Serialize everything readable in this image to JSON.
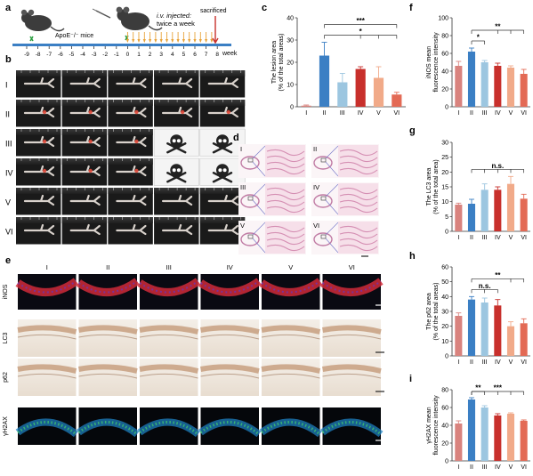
{
  "panels": {
    "a": {
      "letter": "a",
      "mouse_label": "ApoE⁻/⁻ mice",
      "injection_label_1": "i.v. injected:",
      "injection_label_2": "twice a week",
      "sacrificed_label": "sacrificed",
      "week_label": "week",
      "timeline_ticks": [
        "-9",
        "-8",
        "-7",
        "-6",
        "-5",
        "-4",
        "-3",
        "-2",
        "-1",
        "0",
        "1",
        "2",
        "3",
        "4",
        "5",
        "6",
        "7",
        "8"
      ]
    },
    "b": {
      "letter": "b",
      "groups": [
        "I",
        "II",
        "III",
        "IV",
        "V",
        "VI"
      ]
    },
    "d": {
      "letter": "d",
      "groups": [
        "I",
        "II",
        "III",
        "IV",
        "V",
        "VI"
      ]
    },
    "e": {
      "letter": "e",
      "groups": [
        "I",
        "II",
        "III",
        "IV",
        "V",
        "VI"
      ],
      "rows": [
        "iNOS",
        "LC3",
        "p62",
        "γH2AX"
      ]
    }
  },
  "colors": {
    "I": "#d9837e",
    "II": "#3b7fc4",
    "III": "#9cc6e0",
    "IV": "#c8302c",
    "V": "#f1aa89",
    "VI": "#e36a55",
    "axis": "#333333",
    "sig": "#333333"
  },
  "chart_data": [
    {
      "panel": "c",
      "type": "bar",
      "categories": [
        "I",
        "II",
        "III",
        "IV",
        "V",
        "VI"
      ],
      "values": [
        0.5,
        23,
        11,
        17,
        13,
        5.5
      ],
      "errors": [
        0.3,
        6,
        4,
        1,
        5,
        1
      ],
      "ylabel_1": "The lesion area",
      "ylabel_2": "(% of the total areas)",
      "ylim": [
        0,
        40
      ],
      "yticks": [
        "0",
        "10",
        "20",
        "30",
        "40"
      ],
      "significance": [
        {
          "label": "*",
          "from": 1,
          "to": [
            3,
            4,
            5
          ]
        },
        {
          "label": "***",
          "from": 1,
          "to": [
            5
          ]
        }
      ]
    },
    {
      "panel": "f",
      "type": "bar",
      "categories": [
        "I",
        "II",
        "III",
        "IV",
        "V",
        "VI"
      ],
      "values": [
        46,
        62,
        50,
        46,
        44,
        37
      ],
      "errors": [
        5,
        4,
        2,
        3,
        2,
        5
      ],
      "ylabel_1": "iNOS mean",
      "ylabel_2": "fluorescence intensity",
      "ylim": [
        0,
        100
      ],
      "yticks": [
        "0",
        "20",
        "40",
        "60",
        "80",
        "100"
      ],
      "significance": [
        {
          "label": "*",
          "from": 1,
          "to": [
            2
          ]
        },
        {
          "label": "**",
          "from": 1,
          "to": [
            3,
            4,
            5
          ]
        }
      ]
    },
    {
      "panel": "g",
      "type": "bar",
      "categories": [
        "I",
        "II",
        "III",
        "IV",
        "V",
        "VI"
      ],
      "values": [
        9,
        9.3,
        14,
        14,
        16,
        11
      ],
      "errors": [
        0.5,
        1.5,
        2,
        1,
        2.5,
        1.5
      ],
      "ylabel_1": "The LC3 area",
      "ylabel_2": "(% of the total area)",
      "ylim": [
        0,
        30
      ],
      "yticks": [
        "0",
        "5",
        "10",
        "15",
        "20",
        "25",
        "30"
      ],
      "significance": [
        {
          "label": "n.s.",
          "from": 1,
          "to": [
            2,
            3,
            4,
            5
          ]
        }
      ]
    },
    {
      "panel": "h",
      "type": "bar",
      "categories": [
        "I",
        "II",
        "III",
        "IV",
        "V",
        "VI"
      ],
      "values": [
        27,
        38,
        36,
        34,
        20,
        22
      ],
      "errors": [
        2,
        2,
        3,
        4,
        3,
        3
      ],
      "ylabel_1": "The p62 area",
      "ylabel_2": "(% of the total areas)",
      "ylim": [
        0,
        60
      ],
      "yticks": [
        "0",
        "10",
        "20",
        "30",
        "40",
        "50",
        "60"
      ],
      "significance": [
        {
          "label": "n.s.",
          "from": 1,
          "to": [
            2,
            3
          ]
        },
        {
          "label": "**",
          "from": 1,
          "to": [
            4,
            5
          ]
        }
      ]
    },
    {
      "panel": "i",
      "type": "bar",
      "categories": [
        "I",
        "II",
        "III",
        "IV",
        "V",
        "VI"
      ],
      "values": [
        42,
        69,
        60,
        51,
        53,
        45
      ],
      "errors": [
        3,
        2,
        2,
        2,
        1,
        1
      ],
      "ylabel_1": "γH2AX mean",
      "ylabel_2": "fluorescence intensity",
      "ylim": [
        0,
        80
      ],
      "yticks": [
        "0",
        "20",
        "40",
        "60",
        "80"
      ],
      "significance": [
        {
          "label": "**",
          "from": 1,
          "to": [
            2
          ]
        },
        {
          "label": "***",
          "from": 1,
          "to": [
            3,
            4,
            5
          ]
        }
      ]
    }
  ]
}
